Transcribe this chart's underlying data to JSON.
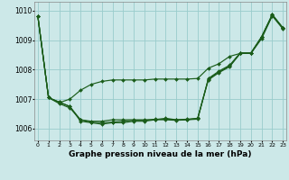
{
  "title": "Graphe pression niveau de la mer (hPa)",
  "xlabel_hours": [
    0,
    1,
    2,
    3,
    4,
    5,
    6,
    7,
    8,
    9,
    10,
    11,
    12,
    13,
    14,
    15,
    16,
    17,
    18,
    19,
    20,
    21,
    22,
    23
  ],
  "xlim": [
    -0.3,
    23.3
  ],
  "ylim": [
    1005.6,
    1010.3
  ],
  "yticks": [
    1006,
    1007,
    1008,
    1009,
    1010
  ],
  "background_color": "#cce8e8",
  "grid_color": "#99cccc",
  "line_color": "#1a5c1a",
  "marker": "D",
  "marker_size": 2.0,
  "linewidth": 0.85,
  "series": [
    [
      1009.8,
      1007.05,
      1006.9,
      1006.75,
      1006.3,
      1006.25,
      1006.25,
      1006.3,
      1006.3,
      1006.3,
      1006.3,
      1006.3,
      1006.35,
      1006.3,
      1006.3,
      1006.35,
      1007.65,
      1007.9,
      1008.1,
      1008.55,
      1008.55,
      1009.1,
      1009.85,
      1009.4
    ],
    [
      1009.8,
      1007.05,
      1006.9,
      1006.75,
      1006.25,
      1006.2,
      1006.15,
      1006.2,
      1006.2,
      1006.25,
      1006.25,
      1006.3,
      1006.3,
      1006.28,
      1006.3,
      1006.32,
      1007.7,
      1007.95,
      1008.15,
      1008.57,
      1008.57,
      1009.12,
      1009.87,
      1009.42
    ],
    [
      1009.8,
      1007.05,
      1006.85,
      1006.7,
      1006.3,
      1006.22,
      1006.2,
      1006.22,
      1006.25,
      1006.28,
      1006.28,
      1006.32,
      1006.32,
      1006.3,
      1006.32,
      1006.35,
      1007.68,
      1007.92,
      1008.12,
      1008.56,
      1008.56,
      1009.1,
      1009.86,
      1009.41
    ],
    [
      1009.8,
      1007.05,
      1006.88,
      1007.0,
      1007.3,
      1007.5,
      1007.6,
      1007.65,
      1007.65,
      1007.65,
      1007.65,
      1007.68,
      1007.68,
      1007.68,
      1007.68,
      1007.7,
      1008.05,
      1008.2,
      1008.45,
      1008.55,
      1008.55,
      1009.05,
      1009.82,
      1009.38
    ]
  ]
}
